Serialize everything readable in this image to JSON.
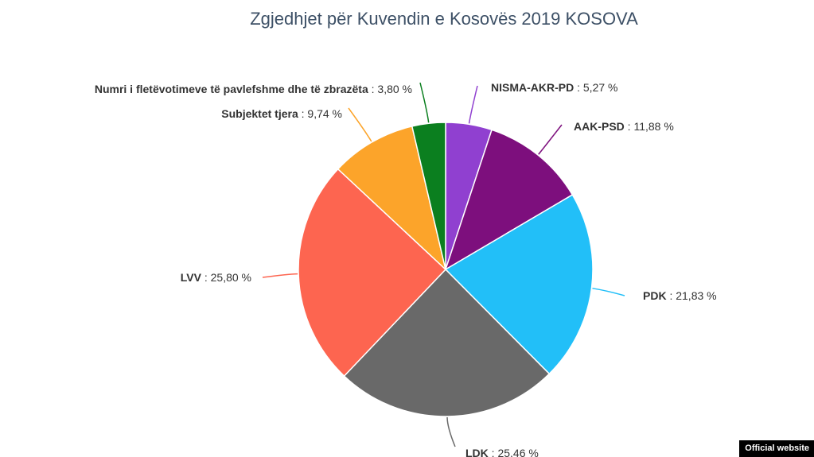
{
  "chart_data": {
    "type": "pie",
    "title": "Zgjedhjet për Kuvendin e Kosovës 2019 KOSOVA",
    "slices": [
      {
        "name": "NISMA-AKR-PD",
        "value": 5.27,
        "label": "5,27 %",
        "color": "#9040d0"
      },
      {
        "name": "AAK-PSD",
        "value": 11.88,
        "label": "11,88 %",
        "color": "#7d0f7d"
      },
      {
        "name": "PDK",
        "value": 21.83,
        "label": "21,83 %",
        "color": "#22bff8"
      },
      {
        "name": "LDK",
        "value": 25.46,
        "label": "25,46 %",
        "color": "#696969"
      },
      {
        "name": "LVV",
        "value": 25.8,
        "label": "25,80 %",
        "color": "#fd6550"
      },
      {
        "name": "Subjektet tjera",
        "value": 9.74,
        "label": "9,74 %",
        "color": "#fca42a"
      },
      {
        "name": "Numri i fletëvotimeve të pavlefshme dhe të zbrazëta",
        "value": 3.8,
        "label": "3,80 %",
        "color": "#0b7f1f"
      }
    ]
  },
  "footer": {
    "watermark": "Official website"
  }
}
